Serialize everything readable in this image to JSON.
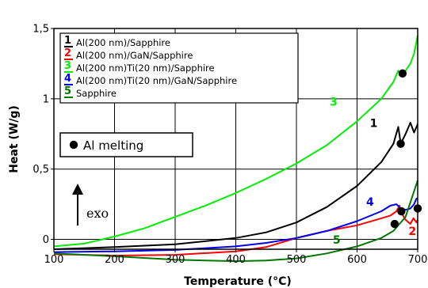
{
  "chart_data": {
    "type": "line",
    "xlabel": "Temperature (°C)",
    "ylabel": "Heat (W/g)",
    "xlim": [
      100,
      700
    ],
    "ylim": [
      -0.07,
      1.5
    ],
    "x_ticks": [
      "100",
      "200",
      "300",
      "400",
      "500",
      "600",
      "700"
    ],
    "y_ticks": [
      {
        "value": 0,
        "label": "0"
      },
      {
        "value": 0.5,
        "label": "0,5"
      },
      {
        "value": 1,
        "label": "1"
      },
      {
        "value": 1.5,
        "label": "1,5"
      }
    ],
    "grid": true,
    "legend_position": "top-left",
    "series": [
      {
        "id": "1",
        "name": "Al(200 nm)/Sapphire",
        "color": "#000000",
        "points": [
          [
            100,
            -0.07
          ],
          [
            200,
            -0.055
          ],
          [
            300,
            -0.035
          ],
          [
            400,
            0.01
          ],
          [
            450,
            0.05
          ],
          [
            500,
            0.12
          ],
          [
            550,
            0.23
          ],
          [
            600,
            0.38
          ],
          [
            640,
            0.55
          ],
          [
            660,
            0.68
          ],
          [
            668,
            0.8
          ],
          [
            672,
            0.68
          ],
          [
            680,
            0.75
          ],
          [
            688,
            0.83
          ],
          [
            694,
            0.76
          ],
          [
            698,
            0.8
          ],
          [
            700,
            0.82
          ]
        ],
        "label_at": [
          621,
          0.8
        ]
      },
      {
        "id": "2",
        "name": "Al(200 nm)/GaN/Sapphire",
        "color": "#ff0000",
        "points": [
          [
            100,
            -0.105
          ],
          [
            200,
            -0.115
          ],
          [
            300,
            -0.11
          ],
          [
            400,
            -0.085
          ],
          [
            450,
            -0.055
          ],
          [
            500,
            0.01
          ],
          [
            550,
            0.06
          ],
          [
            600,
            0.1
          ],
          [
            640,
            0.15
          ],
          [
            655,
            0.17
          ],
          [
            665,
            0.2
          ],
          [
            670,
            0.24
          ],
          [
            673,
            0.19
          ],
          [
            680,
            0.14
          ],
          [
            688,
            0.11
          ],
          [
            693,
            0.15
          ],
          [
            698,
            0.12
          ],
          [
            700,
            0.14
          ]
        ],
        "label_at": [
          685,
          0.03
        ]
      },
      {
        "id": "3",
        "name": "Al(200 nm)Ti(20 nm)/Sapphire",
        "color": "#00ee00",
        "points": [
          [
            100,
            -0.05
          ],
          [
            150,
            -0.03
          ],
          [
            200,
            0.02
          ],
          [
            250,
            0.08
          ],
          [
            300,
            0.16
          ],
          [
            350,
            0.24
          ],
          [
            400,
            0.33
          ],
          [
            450,
            0.43
          ],
          [
            500,
            0.54
          ],
          [
            550,
            0.67
          ],
          [
            600,
            0.84
          ],
          [
            640,
            1.0
          ],
          [
            660,
            1.12
          ],
          [
            668,
            1.2
          ],
          [
            672,
            1.17
          ],
          [
            680,
            1.2
          ],
          [
            688,
            1.25
          ],
          [
            694,
            1.32
          ],
          [
            700,
            1.45
          ]
        ],
        "label_at": [
          555,
          0.95
        ]
      },
      {
        "id": "4",
        "name": "Al(200 nm)Ti(20 nm)/GaN/Sapphire",
        "color": "#0000ee",
        "points": [
          [
            100,
            -0.09
          ],
          [
            200,
            -0.085
          ],
          [
            300,
            -0.075
          ],
          [
            400,
            -0.05
          ],
          [
            450,
            -0.025
          ],
          [
            500,
            0.01
          ],
          [
            550,
            0.06
          ],
          [
            600,
            0.13
          ],
          [
            640,
            0.2
          ],
          [
            655,
            0.24
          ],
          [
            665,
            0.25
          ],
          [
            672,
            0.22
          ],
          [
            680,
            0.21
          ],
          [
            688,
            0.22
          ],
          [
            694,
            0.25
          ],
          [
            698,
            0.29
          ],
          [
            700,
            0.29
          ]
        ],
        "label_at": [
          615,
          0.24
        ]
      },
      {
        "id": "5",
        "name": "Sapphire",
        "color": "#007700",
        "points": [
          [
            100,
            -0.1
          ],
          [
            200,
            -0.12
          ],
          [
            300,
            -0.145
          ],
          [
            400,
            -0.155
          ],
          [
            450,
            -0.15
          ],
          [
            500,
            -0.135
          ],
          [
            550,
            -0.1
          ],
          [
            600,
            -0.05
          ],
          [
            640,
            0.01
          ],
          [
            660,
            0.06
          ],
          [
            680,
            0.16
          ],
          [
            700,
            0.42
          ]
        ],
        "label_at": [
          560,
          -0.03
        ]
      }
    ],
    "al_melting_points": [
      [
        675,
        1.18
      ],
      [
        672,
        0.68
      ],
      [
        662,
        0.11
      ],
      [
        673,
        0.2
      ],
      [
        700,
        0.22
      ]
    ],
    "al_melting_label": "Al melting",
    "exo_label": "exo"
  }
}
